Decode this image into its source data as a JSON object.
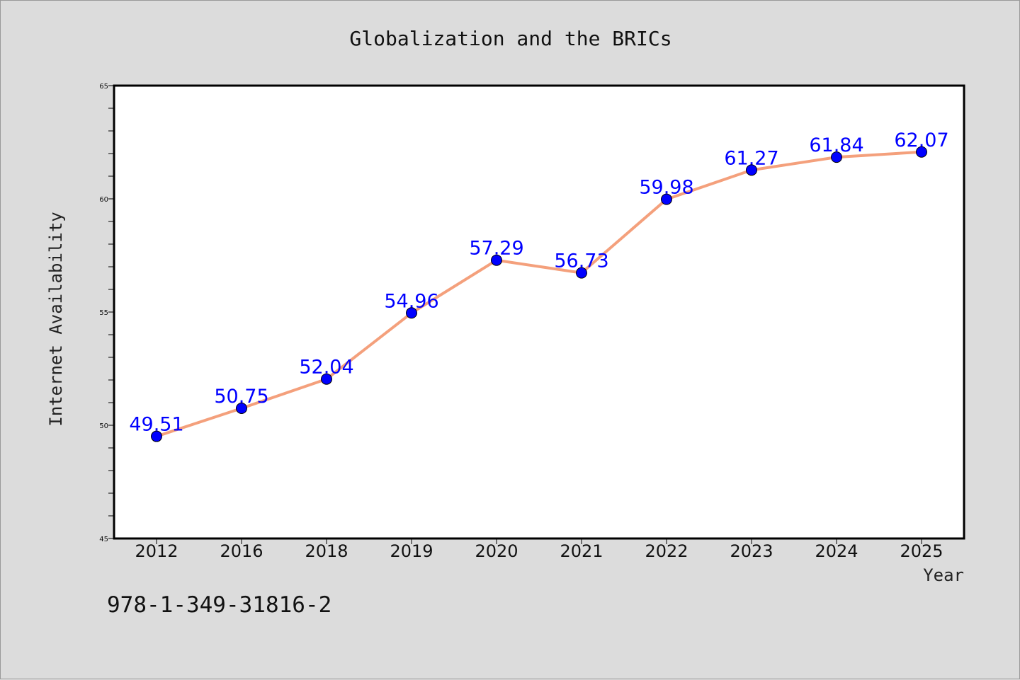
{
  "chart_data": {
    "type": "line",
    "title": "Globalization and the BRICs",
    "xlabel": "Year",
    "ylabel": "Internet Availability",
    "categories": [
      "2012",
      "2016",
      "2018",
      "2019",
      "2020",
      "2021",
      "2022",
      "2023",
      "2024",
      "2025"
    ],
    "series": [
      {
        "values": [
          49.51,
          50.75,
          52.04,
          54.96,
          57.29,
          56.73,
          59.98,
          61.27,
          61.84,
          62.07
        ]
      }
    ],
    "data_labels": [
      "49.51",
      "50.75",
      "52.04",
      "54.96",
      "57.29",
      "56.73",
      "59.98",
      "61.27",
      "61.84",
      "62.07"
    ],
    "ylim": [
      45,
      65
    ],
    "yticks": [
      "45",
      "50",
      "55",
      "60",
      "65"
    ],
    "grid": false,
    "line_color": "#f4a07c",
    "marker_color": "#0000ff",
    "label_color": "#0000ff"
  },
  "footer": {
    "isbn": "978-1-349-31816-2"
  }
}
